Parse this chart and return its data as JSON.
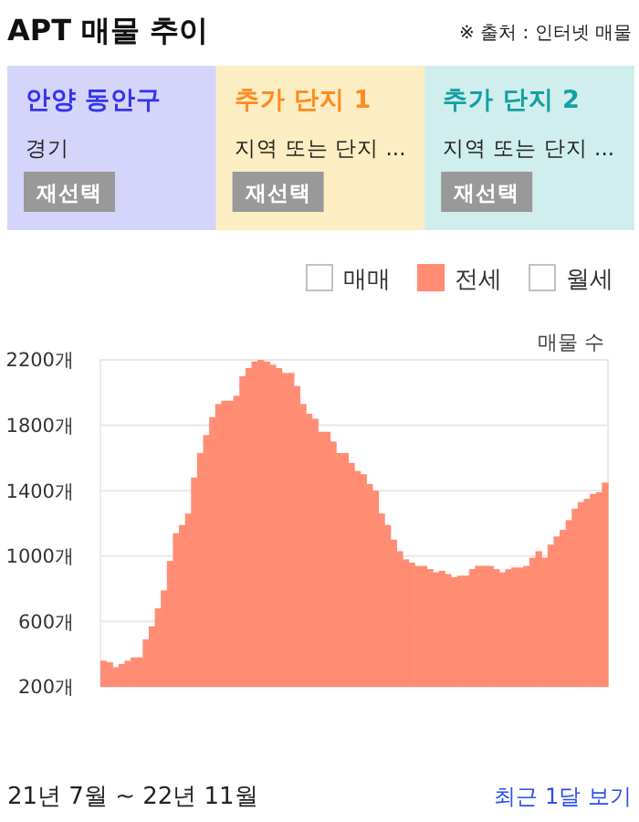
{
  "chart_data": {
    "type": "bar",
    "title": "APT 매물 추이",
    "ylabel": "매물 수",
    "annotations": [
      "※ 출처 : 인터넷 매물",
      "안양 동안구",
      "경기",
      "재선택",
      "추가 단지 1",
      "지역 또는 단지 ...",
      "재선택",
      "추가 단지 2",
      "지역 또는 단지 ...",
      "재선택",
      "21년 7월 ~ 22년 11월",
      "최근 1달 보기"
    ],
    "categories": [
      null,
      null,
      null,
      null,
      null,
      null,
      null,
      null,
      null,
      null,
      null,
      null,
      null,
      null,
      null,
      null,
      null,
      null,
      null,
      null,
      null,
      null,
      null,
      null,
      null,
      null,
      null,
      null,
      null,
      null,
      null,
      null,
      null,
      null,
      null,
      null,
      null,
      null,
      null,
      null,
      null,
      null,
      null,
      null,
      null,
      null,
      null,
      null,
      null,
      null,
      null,
      null,
      null,
      null,
      null,
      null,
      null,
      null,
      null,
      null,
      null,
      null,
      null,
      null,
      null,
      null,
      null,
      null,
      null,
      null,
      null,
      null,
      null,
      null,
      null,
      null,
      null,
      null,
      null,
      null,
      null,
      null,
      null,
      null
    ],
    "series": [
      {
        "name": "매매",
        "values": [
          null,
          null,
          null,
          null,
          null,
          null,
          null,
          null,
          null,
          null,
          null,
          null,
          null,
          null,
          null,
          null,
          null,
          null,
          null,
          null,
          null,
          null,
          null,
          null,
          null,
          null,
          null,
          null,
          null,
          null,
          null,
          null,
          null,
          null,
          null,
          null,
          null,
          null,
          null,
          null,
          null,
          null,
          null,
          null,
          null,
          null,
          null,
          null,
          null,
          null,
          null,
          null,
          null,
          null,
          null,
          null,
          null,
          null,
          null,
          null,
          null,
          null,
          null,
          null,
          null,
          null,
          null,
          null,
          null,
          null,
          null,
          null,
          null,
          null,
          null,
          null,
          null,
          null,
          null,
          null,
          null,
          null,
          null,
          null
        ]
      },
      {
        "name": "전세",
        "color": "#ff8c73",
        "values": [
          360,
          350,
          320,
          340,
          360,
          380,
          380,
          490,
          570,
          680,
          790,
          970,
          1140,
          1190,
          1260,
          1480,
          1630,
          1740,
          1850,
          1930,
          1950,
          1950,
          1980,
          2100,
          2150,
          2190,
          2200,
          2190,
          2170,
          2150,
          2120,
          2120,
          2040,
          1930,
          1870,
          1840,
          1760,
          1760,
          1700,
          1630,
          1630,
          1570,
          1520,
          1500,
          1440,
          1400,
          1260,
          1190,
          1100,
          1030,
          980,
          960,
          940,
          940,
          920,
          900,
          910,
          890,
          870,
          880,
          880,
          920,
          940,
          940,
          940,
          920,
          900,
          920,
          930,
          930,
          940,
          990,
          1030,
          990,
          1070,
          1120,
          1160,
          1220,
          1290,
          1330,
          1350,
          1380,
          1390,
          1450
        ]
      },
      {
        "name": "월세",
        "values": [
          null,
          null,
          null,
          null,
          null,
          null,
          null,
          null,
          null,
          null,
          null,
          null,
          null,
          null,
          null,
          null,
          null,
          null,
          null,
          null,
          null,
          null,
          null,
          null,
          null,
          null,
          null,
          null,
          null,
          null,
          null,
          null,
          null,
          null,
          null,
          null,
          null,
          null,
          null,
          null,
          null,
          null,
          null,
          null,
          null,
          null,
          null,
          null,
          null,
          null,
          null,
          null,
          null,
          null,
          null,
          null,
          null,
          null,
          null,
          null,
          null,
          null,
          null,
          null,
          null,
          null,
          null,
          null,
          null,
          null,
          null,
          null,
          null,
          null,
          null,
          null,
          null,
          null,
          null,
          null,
          null,
          null,
          null,
          null
        ]
      }
    ],
    "ylim": [
      200,
      2200
    ],
    "yticks": [
      {
        "value": 200,
        "label": "200개"
      },
      {
        "value": 600,
        "label": "600개"
      },
      {
        "value": 1000,
        "label": "1000개"
      },
      {
        "value": 1400,
        "label": "1400개"
      },
      {
        "value": 1800,
        "label": "1800개"
      },
      {
        "value": 2200,
        "label": "2200개"
      }
    ],
    "grid": "y",
    "legend": "top right",
    "tick_labels": "y"
  }
}
